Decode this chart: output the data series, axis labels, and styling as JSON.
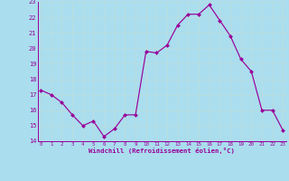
{
  "x": [
    0,
    1,
    2,
    3,
    4,
    5,
    6,
    7,
    8,
    9,
    10,
    11,
    12,
    13,
    14,
    15,
    16,
    17,
    18,
    19,
    20,
    21,
    22,
    23
  ],
  "y": [
    17.3,
    17.0,
    16.5,
    15.7,
    15.0,
    15.3,
    14.3,
    14.8,
    15.7,
    15.7,
    19.8,
    19.7,
    20.2,
    21.5,
    22.2,
    22.2,
    22.8,
    21.8,
    20.8,
    19.3,
    18.5,
    16.0,
    16.0,
    14.7
  ],
  "ylim": [
    14,
    23
  ],
  "yticks": [
    14,
    15,
    16,
    17,
    18,
    19,
    20,
    21,
    22,
    23
  ],
  "xticks": [
    0,
    1,
    2,
    3,
    4,
    5,
    6,
    7,
    8,
    9,
    10,
    11,
    12,
    13,
    14,
    15,
    16,
    17,
    18,
    19,
    20,
    21,
    22,
    23
  ],
  "xlabel": "Windchill (Refroidissement éolien,°C)",
  "line_color": "#990099",
  "marker_color": "#990099",
  "bg_color": "#aaddee",
  "grid_color": "#bbdddd",
  "label_color": "#990099",
  "xlabel_color": "#990099",
  "spine_color": "#990099",
  "xlim": [
    -0.3,
    23.3
  ]
}
